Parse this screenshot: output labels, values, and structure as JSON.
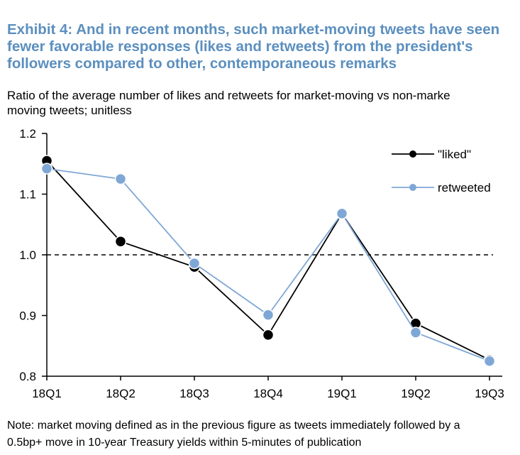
{
  "title": "Exhibit 4: And in recent months, such market-moving tweets have seen fewer favorable responses (likes and retweets) from the president's followers compared to other, contemporaneous remarks",
  "subtitle_line1": "Ratio of the average number of likes and retweets for market-moving vs non-marke",
  "subtitle_line2": "moving tweets; unitless",
  "note_line1": "Note: market moving defined as in the previous figure as tweets immediately followed by a",
  "note_line2": "0.5bp+ move in 10-year Treasury yields within 5-minutes of publication",
  "colors": {
    "title": "#5b8fbf",
    "liked": "#000000",
    "retweeted": "#7fa7d6"
  },
  "chart_data": {
    "type": "line",
    "categories": [
      "18Q1",
      "18Q2",
      "18Q3",
      "18Q4",
      "19Q1",
      "19Q2",
      "19Q3"
    ],
    "series": [
      {
        "name": "\"liked\"",
        "values": [
          1.155,
          1.022,
          0.98,
          0.868,
          1.068,
          0.887,
          0.827
        ],
        "color": "#000000"
      },
      {
        "name": "retweeted",
        "values": [
          1.142,
          1.125,
          0.986,
          0.901,
          1.068,
          0.872,
          0.825
        ],
        "color": "#7fa7d6"
      }
    ],
    "reference_line": 1.0,
    "ylim": [
      0.8,
      1.2
    ],
    "yticks": [
      "1.2",
      "1.1",
      "1.0",
      "0.9",
      "0.8"
    ],
    "ytick_values": [
      1.2,
      1.1,
      1.0,
      0.9,
      0.8
    ],
    "legend_position": "top-right",
    "grid": false
  }
}
